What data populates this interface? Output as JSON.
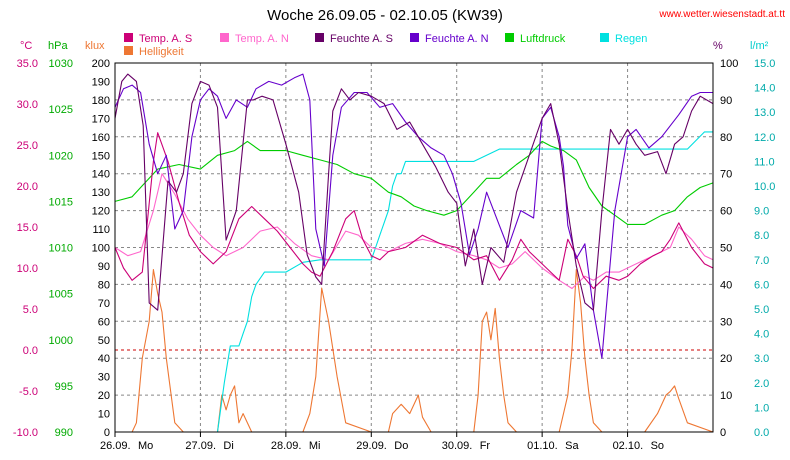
{
  "chart_data": {
    "type": "line",
    "title": "Woche 26.09.05 - 02.10.05 (KW39)",
    "source": "www.wetter.wiesenstadt.at.tt",
    "colors": {
      "temp_s": "#cc0077",
      "temp_n": "#ff66cc",
      "feuchte_s": "#660066",
      "feuchte_n": "#6600cc",
      "luftdruck": "#00cc00",
      "regen": "#00e0e0",
      "helligkeit": "#ee7733",
      "zero_line": "#cc0000",
      "grid": "#888888"
    },
    "axes": {
      "temp": {
        "unit": "°C",
        "ylim": [
          -10,
          35
        ],
        "ticks": [
          "35.0",
          "30.0",
          "25.0",
          "20.0",
          "15.0",
          "10.0",
          "5.0",
          "0.0",
          "-5.0",
          "-10.0"
        ]
      },
      "press": {
        "unit": "hPa",
        "ylim": [
          990,
          1030
        ],
        "ticks": [
          "1030",
          "1025",
          "1020",
          "1015",
          "1010",
          "1005",
          "1000",
          "995",
          "990"
        ]
      },
      "lux": {
        "unit": "klux",
        "ylim": [
          0,
          200
        ],
        "ticks": [
          "200",
          "190",
          "180",
          "170",
          "160",
          "150",
          "140",
          "130",
          "120",
          "110",
          "100",
          "90",
          "80",
          "70",
          "60",
          "50",
          "40",
          "30",
          "20",
          "10",
          "0"
        ]
      },
      "hum": {
        "unit": "%",
        "ylim": [
          0,
          100
        ],
        "ticks": [
          "100",
          "90",
          "80",
          "70",
          "60",
          "50",
          "40",
          "30",
          "20",
          "10",
          "0"
        ]
      },
      "rain": {
        "unit": "l/m²",
        "ylim": [
          0,
          15
        ],
        "ticks": [
          "15.0",
          "14.0",
          "13.0",
          "12.0",
          "11.0",
          "10.0",
          "9.0",
          "8.0",
          "7.0",
          "6.0",
          "5.0",
          "4.0",
          "3.0",
          "2.0",
          "1.0",
          "0.0"
        ]
      }
    },
    "x_range": [
      0,
      7
    ],
    "days": [
      {
        "date": "26.09.",
        "name": "Mo"
      },
      {
        "date": "27.09.",
        "name": "Di"
      },
      {
        "date": "28.09.",
        "name": "Mi"
      },
      {
        "date": "29.09.",
        "name": "Do"
      },
      {
        "date": "30.09.",
        "name": "Fr"
      },
      {
        "date": "01.10.",
        "name": "Sa"
      },
      {
        "date": "02.10.",
        "name": "So"
      }
    ],
    "legend": {
      "row1": [
        "Temp. A. S",
        "Temp. A. N",
        "Feuchte A. S",
        "Feuchte A. N",
        "Luftdruck",
        "Regen"
      ],
      "row2": [
        "Helligkeit"
      ]
    },
    "series": [
      {
        "name": "Temp. A. S",
        "axis": "temp",
        "key": "temp_s",
        "x": [
          0,
          0.1,
          0.2,
          0.32,
          0.45,
          0.5,
          0.62,
          0.75,
          0.87,
          1.0,
          1.15,
          1.3,
          1.45,
          1.6,
          1.75,
          1.9,
          2.05,
          2.2,
          2.3,
          2.4,
          2.55,
          2.7,
          2.8,
          2.9,
          3.0,
          3.1,
          3.2,
          3.4,
          3.6,
          3.8,
          4.0,
          4.2,
          4.35,
          4.5,
          4.65,
          4.75,
          4.85,
          5.0,
          5.1,
          5.2,
          5.3,
          5.4,
          5.48,
          5.6,
          5.75,
          5.9,
          6.0,
          6.15,
          6.3,
          6.4,
          6.5,
          6.6,
          6.75,
          6.9,
          7.0
        ],
        "values": [
          12.5,
          10,
          8.5,
          9.5,
          23,
          26.5,
          23,
          18,
          14,
          12,
          10.5,
          12,
          16,
          17.5,
          16,
          14.5,
          12.5,
          10.5,
          9.5,
          9,
          12,
          16,
          17,
          13.5,
          11.5,
          11,
          12,
          12.5,
          14,
          13,
          12.5,
          11,
          11.5,
          8.5,
          11,
          13.5,
          12,
          10.5,
          9.5,
          8.5,
          13.5,
          11.5,
          9,
          7.5,
          9,
          8.5,
          9,
          10.5,
          11.5,
          12,
          13.5,
          15.5,
          12.5,
          10.5,
          10
        ]
      },
      {
        "name": "Temp. A. N",
        "axis": "temp",
        "key": "temp_n",
        "x": [
          0,
          0.15,
          0.3,
          0.45,
          0.55,
          0.7,
          0.85,
          1.0,
          1.15,
          1.3,
          1.5,
          1.7,
          1.9,
          2.1,
          2.3,
          2.5,
          2.7,
          2.85,
          3.0,
          3.2,
          3.4,
          3.6,
          3.8,
          4.0,
          4.2,
          4.35,
          4.5,
          4.65,
          4.8,
          5.0,
          5.2,
          5.35,
          5.5,
          5.6,
          5.75,
          5.9,
          6.1,
          6.3,
          6.5,
          6.6,
          6.75,
          6.9,
          7.0
        ],
        "values": [
          12.5,
          11.5,
          12,
          17,
          21.5,
          19,
          16,
          14,
          12.5,
          11.5,
          12.5,
          14.5,
          15,
          13,
          11.5,
          11,
          14.5,
          14,
          12.5,
          12,
          13,
          13.5,
          13,
          12,
          11.5,
          11,
          10,
          10.5,
          12,
          10,
          8.5,
          7.5,
          9,
          8.5,
          9.5,
          9.5,
          10.5,
          11.5,
          12.5,
          15,
          13.5,
          11.5,
          11
        ]
      },
      {
        "name": "Feuchte A. S",
        "axis": "hum",
        "key": "feuchte_s",
        "x": [
          0,
          0.08,
          0.15,
          0.25,
          0.33,
          0.4,
          0.5,
          0.62,
          0.72,
          0.8,
          0.9,
          1.0,
          1.1,
          1.2,
          1.3,
          1.42,
          1.55,
          1.62,
          1.72,
          1.85,
          2.0,
          2.15,
          2.25,
          2.35,
          2.42,
          2.5,
          2.55,
          2.65,
          2.75,
          2.85,
          3.0,
          3.15,
          3.3,
          3.45,
          3.6,
          3.75,
          3.9,
          4.0,
          4.1,
          4.2,
          4.3,
          4.4,
          4.55,
          4.7,
          4.85,
          5.0,
          5.1,
          5.2,
          5.3,
          5.4,
          5.5,
          5.6,
          5.7,
          5.8,
          5.9,
          6.0,
          6.1,
          6.2,
          6.35,
          6.45,
          6.55,
          6.65,
          6.75,
          6.85,
          7.0
        ],
        "values": [
          85,
          95,
          97,
          95,
          83,
          35,
          33,
          68,
          65,
          70,
          89,
          95,
          94,
          88,
          52,
          60,
          90,
          90,
          91,
          90,
          78,
          65,
          48,
          42,
          40,
          70,
          87,
          93,
          90,
          92,
          91,
          89,
          82,
          84,
          78,
          72,
          65,
          62,
          45,
          55,
          40,
          50,
          46,
          65,
          75,
          85,
          89,
          78,
          60,
          45,
          35,
          33,
          60,
          82,
          78,
          82,
          78,
          75,
          76,
          70,
          78,
          80,
          87,
          91,
          89
        ]
      },
      {
        "name": "Feuchte A. N",
        "axis": "hum",
        "key": "feuchte_n",
        "x": [
          0,
          0.1,
          0.2,
          0.3,
          0.4,
          0.5,
          0.6,
          0.7,
          0.8,
          0.9,
          1.0,
          1.1,
          1.2,
          1.3,
          1.42,
          1.55,
          1.65,
          1.8,
          1.95,
          2.1,
          2.2,
          2.28,
          2.35,
          2.45,
          2.55,
          2.65,
          2.8,
          2.95,
          3.1,
          3.25,
          3.4,
          3.55,
          3.7,
          3.85,
          3.95,
          4.05,
          4.15,
          4.25,
          4.35,
          4.5,
          4.6,
          4.75,
          4.9,
          5.0,
          5.1,
          5.2,
          5.25,
          5.3,
          5.4,
          5.5,
          5.6,
          5.7,
          5.85,
          6.0,
          6.1,
          6.25,
          6.4,
          6.5,
          6.6,
          6.75,
          6.85,
          7.0
        ],
        "values": [
          88,
          93,
          94,
          92,
          78,
          70,
          75,
          55,
          60,
          80,
          90,
          93,
          91,
          85,
          90,
          88,
          93,
          95,
          94,
          96,
          97,
          90,
          55,
          45,
          75,
          88,
          92,
          92,
          88,
          89,
          84,
          80,
          77,
          75,
          70,
          62,
          48,
          55,
          65,
          56,
          50,
          60,
          58,
          85,
          88,
          80,
          72,
          56,
          47,
          51,
          33,
          20,
          60,
          80,
          82,
          77,
          80,
          83,
          86,
          91,
          92,
          92
        ]
      },
      {
        "name": "Luftdruck",
        "axis": "press",
        "key": "luftdruck",
        "x": [
          0,
          0.2,
          0.35,
          0.5,
          0.75,
          1.0,
          1.2,
          1.4,
          1.55,
          1.7,
          1.85,
          2.0,
          2.2,
          2.4,
          2.6,
          2.8,
          3.0,
          3.2,
          3.35,
          3.5,
          3.65,
          3.85,
          4.0,
          4.2,
          4.35,
          4.5,
          4.7,
          4.85,
          5.0,
          5.1,
          5.25,
          5.4,
          5.55,
          5.7,
          5.85,
          6.0,
          6.2,
          6.4,
          6.55,
          6.7,
          6.85,
          7.0
        ],
        "values": [
          1015,
          1015.5,
          1017,
          1018.5,
          1019,
          1018.5,
          1020,
          1020.5,
          1021.5,
          1020.5,
          1020.5,
          1020.5,
          1020,
          1019.5,
          1019,
          1018,
          1017.5,
          1016,
          1015.5,
          1014.5,
          1014,
          1013.5,
          1014,
          1016,
          1017.5,
          1017.5,
          1019,
          1020,
          1021.5,
          1021,
          1020.5,
          1019.5,
          1016.5,
          1014.5,
          1013.5,
          1012.5,
          1012.5,
          1013.5,
          1014,
          1015.5,
          1016.5,
          1017
        ]
      },
      {
        "name": "Regen",
        "axis": "rain",
        "key": "regen",
        "x": [
          0,
          1.2,
          1.28,
          1.35,
          1.45,
          1.5,
          1.55,
          1.6,
          1.65,
          1.75,
          1.85,
          2.0,
          2.2,
          2.4,
          2.5,
          2.6,
          2.8,
          3.0,
          3.05,
          3.1,
          3.15,
          3.2,
          3.25,
          3.3,
          3.35,
          3.4,
          3.5,
          3.6,
          3.8,
          4.0,
          4.2,
          4.5,
          4.8,
          5.0,
          5.5,
          5.9,
          6.0,
          6.5,
          6.7,
          6.9,
          7.0
        ],
        "values": [
          0,
          0,
          2,
          3.5,
          3.5,
          4,
          4.5,
          5.5,
          6,
          6.5,
          6.5,
          6.5,
          6.9,
          7,
          7,
          7,
          7,
          7,
          7.5,
          8,
          8.5,
          9,
          10,
          10.5,
          10.5,
          11,
          11,
          11,
          11,
          11,
          11,
          11.5,
          11.5,
          11.5,
          11.5,
          11.5,
          11.5,
          11.5,
          11.5,
          12.2,
          12.2
        ]
      },
      {
        "name": "Helligkeit",
        "axis": "lux",
        "key": "helligkeit",
        "x": [
          0,
          0.2,
          0.25,
          0.32,
          0.4,
          0.45,
          0.5,
          0.55,
          0.6,
          0.7,
          0.8,
          1.0,
          1.2,
          1.25,
          1.3,
          1.35,
          1.4,
          1.45,
          1.5,
          1.6,
          2.0,
          2.2,
          2.28,
          2.35,
          2.42,
          2.5,
          2.6,
          2.7,
          3.0,
          3.2,
          3.25,
          3.35,
          3.45,
          3.55,
          3.6,
          3.7,
          4.0,
          4.2,
          4.25,
          4.3,
          4.35,
          4.4,
          4.45,
          4.5,
          4.55,
          4.6,
          4.7,
          5.0,
          5.2,
          5.3,
          5.35,
          5.4,
          5.45,
          5.5,
          5.55,
          5.6,
          5.7,
          6.0,
          6.2,
          6.35,
          6.45,
          6.5,
          6.55,
          6.6,
          6.7,
          7.0
        ],
        "values": [
          0,
          0,
          5,
          40,
          60,
          88,
          75,
          65,
          40,
          5,
          0,
          0,
          0,
          20,
          12,
          20,
          25,
          5,
          10,
          0,
          0,
          0,
          10,
          30,
          78,
          60,
          30,
          5,
          0,
          0,
          10,
          15,
          10,
          20,
          8,
          0,
          0,
          0,
          20,
          60,
          65,
          50,
          67,
          40,
          20,
          5,
          0,
          0,
          0,
          20,
          45,
          88,
          70,
          40,
          20,
          5,
          0,
          0,
          0,
          10,
          20,
          22,
          25,
          18,
          5,
          0
        ]
      }
    ]
  }
}
